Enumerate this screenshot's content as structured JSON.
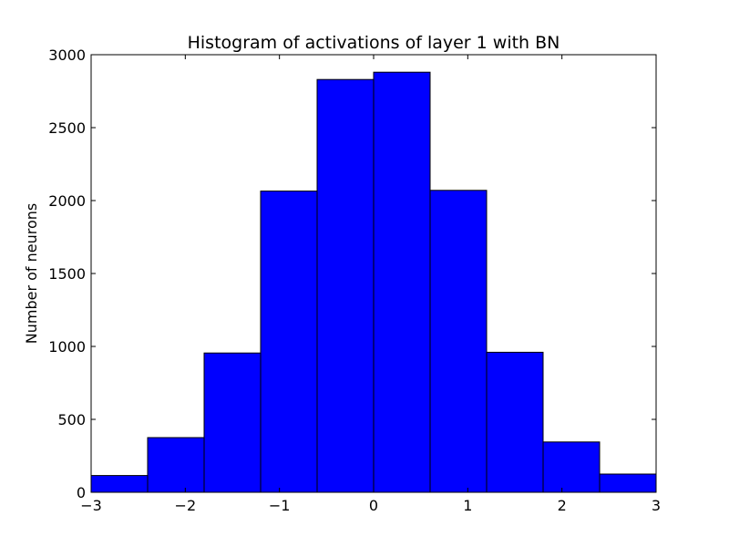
{
  "chart_data": {
    "type": "bar",
    "title": "Histogram of activations of layer 1  with BN",
    "xlabel": "",
    "ylabel": "Number of neurons",
    "bar_color": "#0000ff",
    "edge_color": "#000000",
    "xlim": [
      -3,
      3
    ],
    "ylim": [
      0,
      3000
    ],
    "grid": false,
    "legend": "none",
    "bins": [
      {
        "start": -3.0,
        "end": -2.4,
        "value": 115
      },
      {
        "start": -2.4,
        "end": -1.8,
        "value": 375
      },
      {
        "start": -1.8,
        "end": -1.2,
        "value": 955
      },
      {
        "start": -1.2,
        "end": -0.6,
        "value": 2065
      },
      {
        "start": -0.6,
        "end": 0.0,
        "value": 2830
      },
      {
        "start": 0.0,
        "end": 0.6,
        "value": 2880
      },
      {
        "start": 0.6,
        "end": 1.2,
        "value": 2070
      },
      {
        "start": 1.2,
        "end": 1.8,
        "value": 960
      },
      {
        "start": 1.8,
        "end": 2.4,
        "value": 345
      },
      {
        "start": 2.4,
        "end": 3.0,
        "value": 125
      }
    ],
    "x_ticks": [
      {
        "value": -3,
        "label": "−3"
      },
      {
        "value": -2,
        "label": "−2"
      },
      {
        "value": -1,
        "label": "−1"
      },
      {
        "value": 0,
        "label": "0"
      },
      {
        "value": 1,
        "label": "1"
      },
      {
        "value": 2,
        "label": "2"
      },
      {
        "value": 3,
        "label": "3"
      }
    ],
    "y_ticks": [
      {
        "value": 0,
        "label": "0"
      },
      {
        "value": 500,
        "label": "500"
      },
      {
        "value": 1000,
        "label": "1000"
      },
      {
        "value": 1500,
        "label": "1500"
      },
      {
        "value": 2000,
        "label": "2000"
      },
      {
        "value": 2500,
        "label": "2500"
      },
      {
        "value": 3000,
        "label": "3000"
      }
    ]
  }
}
